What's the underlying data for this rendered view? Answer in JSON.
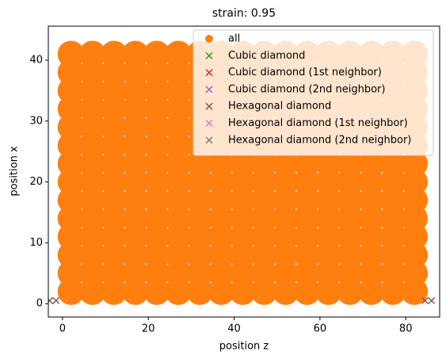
{
  "chart_data": {
    "type": "scatter",
    "title": "strain: 0.95",
    "xlabel": "position z",
    "ylabel": "position x",
    "xlim": [
      -3.3,
      87.9
    ],
    "ylim": [
      -2.2,
      45.6
    ],
    "xticks": [
      0,
      20,
      40,
      60,
      80
    ],
    "yticks": [
      0,
      10,
      20,
      30,
      40
    ],
    "legend": "upper right",
    "series": [
      {
        "name": "all",
        "color": "#ff7f0e",
        "marker": "o",
        "x": [
          2,
          7,
          12,
          17,
          22,
          27,
          32,
          37,
          42,
          47,
          52,
          57,
          62,
          67,
          72,
          77,
          82,
          2,
          7,
          12,
          17,
          22,
          27,
          32,
          37,
          42,
          47,
          52,
          57,
          62,
          67,
          72,
          77,
          82,
          2,
          7,
          12,
          17,
          22,
          27,
          32,
          37,
          42,
          47,
          52,
          57,
          62,
          67,
          72,
          77,
          82,
          2,
          7,
          12,
          17,
          22,
          27,
          32,
          37,
          42,
          47,
          52,
          57,
          62,
          67,
          72,
          77,
          82,
          2,
          7,
          12,
          17,
          22,
          27,
          32,
          37,
          42,
          47,
          52,
          57,
          62,
          67,
          72,
          77,
          82,
          2,
          7,
          12,
          17,
          22,
          27,
          32,
          37,
          42,
          47,
          52,
          57,
          62,
          67,
          72,
          77,
          82,
          2,
          7,
          12,
          17,
          22,
          27,
          32,
          37,
          42,
          47,
          52,
          57,
          62,
          67,
          72,
          77,
          82,
          2,
          7,
          12,
          17,
          22,
          27,
          32,
          37,
          42,
          47,
          52,
          57,
          62,
          67,
          72,
          77,
          82,
          2,
          7,
          12,
          17,
          22,
          27,
          32,
          37,
          42,
          47,
          52,
          57,
          62,
          67,
          72,
          77,
          82,
          2,
          7,
          12,
          17,
          22,
          27,
          32,
          37,
          42,
          47,
          52,
          57,
          62,
          67,
          72,
          77,
          82,
          2,
          7,
          12,
          17,
          22,
          27,
          32,
          37,
          42,
          47,
          52,
          57,
          62,
          67,
          72,
          77,
          82,
          2,
          7,
          12,
          17,
          22,
          27,
          32,
          37,
          42,
          47,
          52,
          57,
          62,
          67,
          72,
          77,
          82,
          2,
          7,
          12,
          17,
          22,
          27,
          32,
          37,
          42,
          47,
          52,
          57,
          62,
          67,
          72,
          77,
          82,
          2,
          7,
          12,
          17,
          22,
          27,
          32,
          37,
          42,
          47,
          52,
          57,
          62,
          67,
          72,
          77,
          82
        ],
        "y": [
          2,
          2,
          2,
          2,
          2,
          2,
          2,
          2,
          2,
          2,
          2,
          2,
          2,
          2,
          2,
          2,
          2,
          5,
          5,
          5,
          5,
          5,
          5,
          5,
          5,
          5,
          5,
          5,
          5,
          5,
          5,
          5,
          5,
          5,
          8,
          8,
          8,
          8,
          8,
          8,
          8,
          8,
          8,
          8,
          8,
          8,
          8,
          8,
          8,
          8,
          8,
          11,
          11,
          11,
          11,
          11,
          11,
          11,
          11,
          11,
          11,
          11,
          11,
          11,
          11,
          11,
          11,
          11,
          14,
          14,
          14,
          14,
          14,
          14,
          14,
          14,
          14,
          14,
          14,
          14,
          14,
          14,
          14,
          14,
          14,
          17,
          17,
          17,
          17,
          17,
          17,
          17,
          17,
          17,
          17,
          17,
          17,
          17,
          17,
          17,
          17,
          17,
          20,
          20,
          20,
          20,
          20,
          20,
          20,
          20,
          20,
          20,
          20,
          20,
          20,
          20,
          20,
          20,
          20,
          23,
          23,
          23,
          23,
          23,
          23,
          23,
          23,
          23,
          23,
          23,
          23,
          23,
          23,
          23,
          23,
          23,
          26,
          26,
          26,
          26,
          26,
          26,
          26,
          26,
          26,
          26,
          26,
          26,
          26,
          26,
          26,
          26,
          26,
          29,
          29,
          29,
          29,
          29,
          29,
          29,
          29,
          29,
          29,
          29,
          29,
          29,
          29,
          29,
          29,
          29,
          32,
          32,
          32,
          32,
          32,
          32,
          32,
          32,
          32,
          32,
          32,
          32,
          32,
          32,
          32,
          32,
          32,
          35,
          35,
          35,
          35,
          35,
          35,
          35,
          35,
          35,
          35,
          35,
          35,
          35,
          35,
          35,
          35,
          35,
          38,
          38,
          38,
          38,
          38,
          38,
          38,
          38,
          38,
          38,
          38,
          38,
          38,
          38,
          38,
          38,
          38,
          41,
          41,
          41,
          41,
          41,
          41,
          41,
          41,
          41,
          41,
          41,
          41,
          41,
          41,
          41,
          41,
          41
        ]
      },
      {
        "name": "Cubic diamond",
        "color": "#2ca02c",
        "marker": "x",
        "x": [],
        "y": []
      },
      {
        "name": "Cubic diamond (1st neighbor)",
        "color": "#d62728",
        "marker": "x",
        "x": [],
        "y": []
      },
      {
        "name": "Cubic diamond (2nd neighbor)",
        "color": "#9467bd",
        "marker": "x",
        "x": [],
        "y": []
      },
      {
        "name": "Hexagonal diamond",
        "color": "#8c564b",
        "marker": "x",
        "x": [
          -3,
          -1.5,
          84.5,
          86
        ],
        "y": [
          0.5,
          0.5,
          0.5,
          0.5
        ]
      },
      {
        "name": "Hexagonal diamond (1st neighbor)",
        "color": "#e377c2",
        "marker": "x",
        "x": [],
        "y": []
      },
      {
        "name": "Hexagonal diamond (2nd neighbor)",
        "color": "#7f7f7f",
        "marker": "x",
        "x": [],
        "y": []
      }
    ]
  }
}
